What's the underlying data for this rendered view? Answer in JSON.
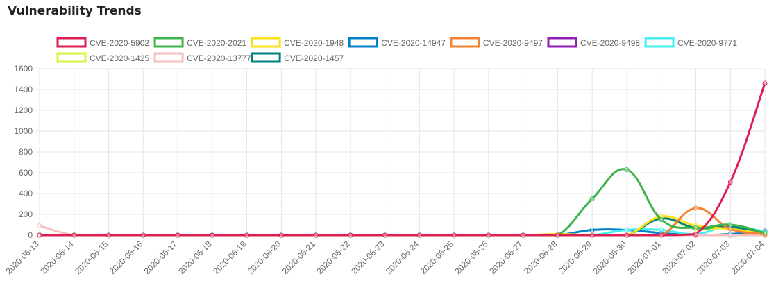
{
  "title": "Vulnerability Trends",
  "chart_data": {
    "type": "line",
    "title": "",
    "xlabel": "",
    "ylabel": "",
    "ylim": [
      0,
      1600
    ],
    "yticks": [
      0,
      200,
      400,
      600,
      800,
      1000,
      1200,
      1400,
      1600
    ],
    "grid": true,
    "legend_position": "top-center",
    "categories": [
      "2020-06-13",
      "2020-06-14",
      "2020-06-15",
      "2020-06-16",
      "2020-06-17",
      "2020-06-18",
      "2020-06-19",
      "2020-06-20",
      "2020-06-21",
      "2020-06-22",
      "2020-06-23",
      "2020-06-24",
      "2020-06-25",
      "2020-06-26",
      "2020-06-27",
      "2020-06-28",
      "2020-06-29",
      "2020-06-30",
      "2020-07-01",
      "2020-07-02",
      "2020-07-03",
      "2020-07-04"
    ],
    "series": [
      {
        "name": "CVE-2020-5902",
        "color": "#dc1e50",
        "values": [
          0,
          0,
          0,
          0,
          0,
          0,
          0,
          0,
          0,
          0,
          0,
          0,
          0,
          0,
          0,
          0,
          0,
          0,
          0,
          10,
          510,
          1460
        ]
      },
      {
        "name": "CVE-2020-2021",
        "color": "#3cb44b",
        "values": [
          0,
          0,
          0,
          0,
          0,
          0,
          0,
          0,
          0,
          0,
          0,
          0,
          0,
          0,
          0,
          0,
          350,
          630,
          150,
          70,
          100,
          20
        ]
      },
      {
        "name": "CVE-2020-1948",
        "color": "#ffe119",
        "values": [
          0,
          0,
          0,
          0,
          0,
          0,
          0,
          0,
          0,
          0,
          0,
          0,
          0,
          0,
          0,
          10,
          0,
          0,
          180,
          90,
          60,
          10
        ]
      },
      {
        "name": "CVE-2020-14947",
        "color": "#0082c8",
        "values": [
          0,
          0,
          0,
          0,
          0,
          0,
          0,
          0,
          0,
          0,
          0,
          0,
          0,
          0,
          0,
          0,
          50,
          50,
          20,
          0,
          10,
          40
        ]
      },
      {
        "name": "CVE-2020-9497",
        "color": "#f58231",
        "values": [
          0,
          0,
          0,
          0,
          0,
          0,
          0,
          0,
          0,
          0,
          0,
          0,
          0,
          0,
          0,
          0,
          0,
          0,
          0,
          260,
          60,
          10
        ]
      },
      {
        "name": "CVE-2020-9498",
        "color": "#911eb4",
        "values": [
          0,
          0,
          0,
          0,
          0,
          0,
          0,
          0,
          0,
          0,
          0,
          0,
          0,
          0,
          0,
          0,
          0,
          0,
          0,
          0,
          0,
          0
        ]
      },
      {
        "name": "CVE-2020-9771",
        "color": "#46f0f0",
        "values": [
          0,
          0,
          0,
          0,
          0,
          0,
          0,
          0,
          0,
          0,
          0,
          0,
          0,
          0,
          0,
          0,
          0,
          50,
          50,
          10,
          90,
          30
        ]
      },
      {
        "name": "CVE-2020-1425",
        "color": "#d2f53c",
        "values": [
          0,
          0,
          0,
          0,
          0,
          0,
          0,
          0,
          0,
          0,
          0,
          0,
          0,
          0,
          0,
          0,
          0,
          0,
          160,
          60,
          70,
          10
        ]
      },
      {
        "name": "CVE-2020-13777",
        "color": "#fabebe",
        "values": [
          90,
          0,
          0,
          0,
          0,
          0,
          0,
          0,
          0,
          0,
          0,
          0,
          0,
          0,
          0,
          0,
          0,
          0,
          0,
          0,
          0,
          0
        ]
      },
      {
        "name": "CVE-2020-1457",
        "color": "#008080",
        "values": [
          0,
          0,
          0,
          0,
          0,
          0,
          0,
          0,
          0,
          0,
          0,
          0,
          0,
          0,
          0,
          0,
          0,
          0,
          160,
          70,
          80,
          20
        ]
      }
    ]
  }
}
